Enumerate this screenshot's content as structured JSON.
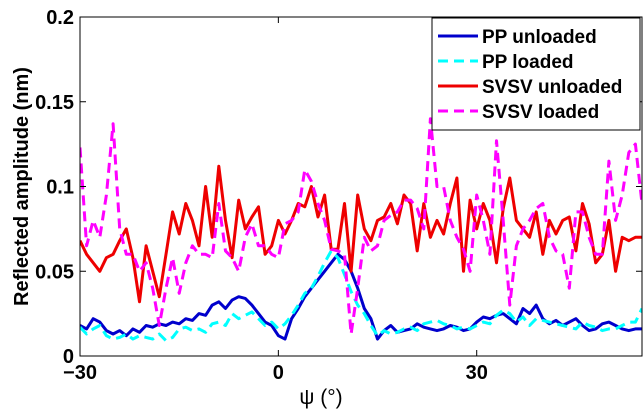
{
  "chart_data": {
    "type": "line",
    "xlabel": "ψ (°)",
    "ylabel": "Reflected amplitude (nm)",
    "xlim": [
      -30,
      55
    ],
    "ylim": [
      0,
      0.2
    ],
    "xticks": [
      -30,
      0,
      30
    ],
    "xtick_labels": [
      "−30",
      "0",
      "30"
    ],
    "yticks": [
      0,
      0.05,
      0.1,
      0.15,
      0.2
    ],
    "ytick_labels": [
      "0",
      "0.05",
      "0.1",
      "0.15",
      "0.2"
    ],
    "grid": false,
    "legend_position": "top-right",
    "x": [
      -30,
      -29,
      -28,
      -27,
      -26,
      -25,
      -24,
      -23,
      -22,
      -21,
      -20,
      -19,
      -18,
      -17,
      -16,
      -15,
      -14,
      -13,
      -12,
      -11,
      -10,
      -9,
      -8,
      -7,
      -6,
      -5,
      -4,
      -3,
      -2,
      -1,
      0,
      1,
      2,
      3,
      4,
      5,
      6,
      7,
      8,
      9,
      10,
      11,
      12,
      13,
      14,
      15,
      16,
      17,
      18,
      19,
      20,
      21,
      22,
      23,
      24,
      25,
      26,
      27,
      28,
      29,
      30,
      31,
      32,
      33,
      34,
      35,
      36,
      37,
      38,
      39,
      40,
      41,
      42,
      43,
      44,
      45,
      46,
      47,
      48,
      49,
      50,
      51,
      52,
      53,
      54,
      55
    ],
    "series": [
      {
        "name": "PP unloaded",
        "color": "#0000cc",
        "dash": "solid",
        "values": [
          0.018,
          0.016,
          0.022,
          0.02,
          0.015,
          0.013,
          0.015,
          0.012,
          0.016,
          0.014,
          0.018,
          0.017,
          0.019,
          0.018,
          0.02,
          0.019,
          0.022,
          0.021,
          0.025,
          0.024,
          0.03,
          0.032,
          0.028,
          0.033,
          0.035,
          0.034,
          0.03,
          0.025,
          0.02,
          0.018,
          0.012,
          0.01,
          0.022,
          0.028,
          0.035,
          0.04,
          0.045,
          0.05,
          0.055,
          0.06,
          0.057,
          0.05,
          0.04,
          0.028,
          0.022,
          0.01,
          0.015,
          0.018,
          0.014,
          0.015,
          0.016,
          0.019,
          0.017,
          0.016,
          0.015,
          0.016,
          0.018,
          0.017,
          0.015,
          0.016,
          0.02,
          0.023,
          0.022,
          0.024,
          0.025,
          0.022,
          0.019,
          0.028,
          0.025,
          0.03,
          0.022,
          0.019,
          0.021,
          0.018,
          0.02,
          0.022,
          0.018,
          0.015,
          0.016,
          0.019,
          0.02,
          0.018,
          0.016,
          0.015,
          0.016,
          0.016
        ]
      },
      {
        "name": "PP loaded",
        "color": "#00ffff",
        "dash": "dashed",
        "values": [
          0.017,
          0.013,
          0.016,
          0.018,
          0.012,
          0.01,
          0.011,
          0.013,
          0.01,
          0.012,
          0.011,
          0.01,
          0.013,
          0.009,
          0.011,
          0.016,
          0.017,
          0.015,
          0.016,
          0.014,
          0.019,
          0.02,
          0.018,
          0.025,
          0.022,
          0.024,
          0.026,
          0.022,
          0.018,
          0.02,
          0.016,
          0.019,
          0.024,
          0.03,
          0.037,
          0.04,
          0.047,
          0.055,
          0.062,
          0.058,
          0.048,
          0.038,
          0.03,
          0.025,
          0.018,
          0.012,
          0.015,
          0.013,
          0.014,
          0.016,
          0.017,
          0.015,
          0.019,
          0.02,
          0.021,
          0.019,
          0.018,
          0.016,
          0.017,
          0.016,
          0.018,
          0.02,
          0.019,
          0.024,
          0.027,
          0.025,
          0.02,
          0.023,
          0.018,
          0.022,
          0.021,
          0.02,
          0.019,
          0.018,
          0.017,
          0.016,
          0.02,
          0.018,
          0.017,
          0.015,
          0.016,
          0.016,
          0.018,
          0.02,
          0.02,
          0.028
        ]
      },
      {
        "name": "SVSV unloaded",
        "color": "#ee0000",
        "dash": "solid",
        "values": [
          0.068,
          0.06,
          0.055,
          0.05,
          0.058,
          0.06,
          0.068,
          0.075,
          0.058,
          0.032,
          0.065,
          0.05,
          0.035,
          0.06,
          0.085,
          0.072,
          0.09,
          0.08,
          0.065,
          0.1,
          0.07,
          0.112,
          0.08,
          0.058,
          0.092,
          0.075,
          0.082,
          0.088,
          0.06,
          0.065,
          0.08,
          0.072,
          0.08,
          0.09,
          0.088,
          0.1,
          0.082,
          0.095,
          0.063,
          0.063,
          0.09,
          0.05,
          0.095,
          0.075,
          0.068,
          0.08,
          0.082,
          0.09,
          0.078,
          0.095,
          0.09,
          0.062,
          0.09,
          0.07,
          0.08,
          0.072,
          0.09,
          0.105,
          0.05,
          0.092,
          0.075,
          0.09,
          0.08,
          0.055,
          0.087,
          0.105,
          0.08,
          0.075,
          0.07,
          0.085,
          0.06,
          0.08,
          0.072,
          0.08,
          0.082,
          0.062,
          0.09,
          0.078,
          0.055,
          0.06,
          0.08,
          0.05,
          0.07,
          0.068,
          0.07,
          0.07
        ]
      },
      {
        "name": "SVSV loaded",
        "color": "#ff00ff",
        "dash": "dashed",
        "values": [
          0.123,
          0.065,
          0.08,
          0.07,
          0.095,
          0.137,
          0.075,
          0.06,
          0.06,
          0.05,
          0.055,
          0.04,
          0.018,
          0.04,
          0.058,
          0.037,
          0.055,
          0.065,
          0.06,
          0.06,
          0.058,
          0.09,
          0.062,
          0.058,
          0.05,
          0.07,
          0.078,
          0.065,
          0.065,
          0.06,
          0.058,
          0.078,
          0.08,
          0.085,
          0.11,
          0.103,
          0.09,
          0.08,
          0.063,
          0.062,
          0.06,
          0.013,
          0.04,
          0.07,
          0.062,
          0.065,
          0.08,
          0.083,
          0.085,
          0.092,
          0.092,
          0.087,
          0.075,
          0.14,
          0.1,
          0.1,
          0.08,
          0.07,
          0.063,
          0.05,
          0.095,
          0.08,
          0.06,
          0.127,
          0.08,
          0.03,
          0.065,
          0.075,
          0.08,
          0.087,
          0.09,
          0.07,
          0.062,
          0.06,
          0.04,
          0.085,
          0.085,
          0.07,
          0.06,
          0.06,
          0.115,
          0.08,
          0.095,
          0.12,
          0.125,
          0.09
        ]
      }
    ]
  }
}
